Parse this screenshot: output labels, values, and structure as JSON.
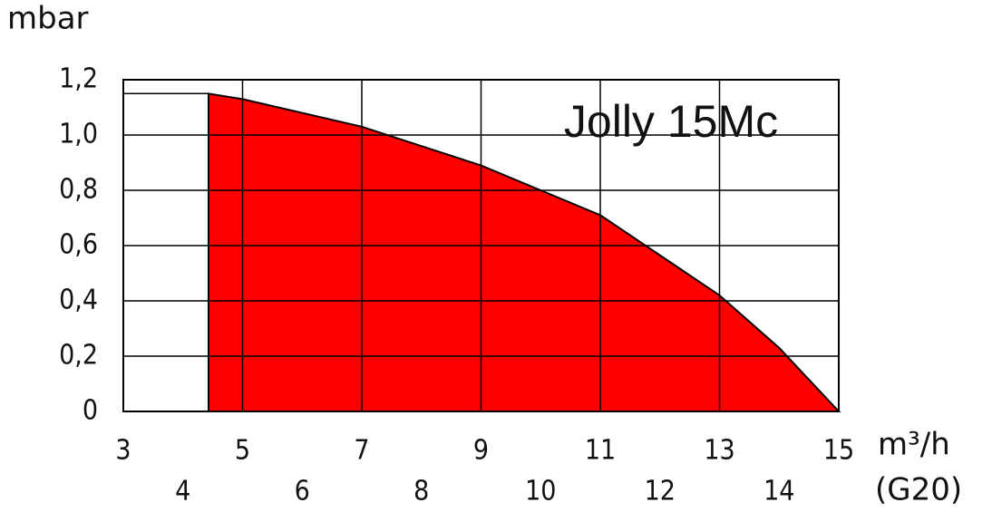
{
  "chart_data": {
    "type": "area",
    "y_label": "mbar",
    "x_label": "m³/h",
    "x_label_sub": "(G20)",
    "annotation": "Jolly 15Mc",
    "x": [
      4.43,
      5,
      7,
      9,
      11,
      13,
      14,
      15
    ],
    "values": [
      1.15,
      1.13,
      1.03,
      0.89,
      0.71,
      0.42,
      0.23,
      0
    ],
    "color": "#ff0000",
    "xlim": [
      3,
      15
    ],
    "xticks": [
      3,
      4,
      5,
      6,
      7,
      8,
      9,
      10,
      11,
      12,
      13,
      14,
      15
    ],
    "ylim": [
      0,
      1.2
    ],
    "yticks": [
      0,
      {
        "value": 0.2,
        "label": "0,2"
      },
      {
        "value": 0.4,
        "label": "0,4"
      },
      {
        "value": 0.6,
        "label": "0,6"
      },
      {
        "value": 0.8,
        "label": "0,8"
      },
      {
        "value": 1.0,
        "label": "1,0"
      },
      {
        "value": 1.2,
        "label": "1,2"
      }
    ],
    "grid": true
  }
}
